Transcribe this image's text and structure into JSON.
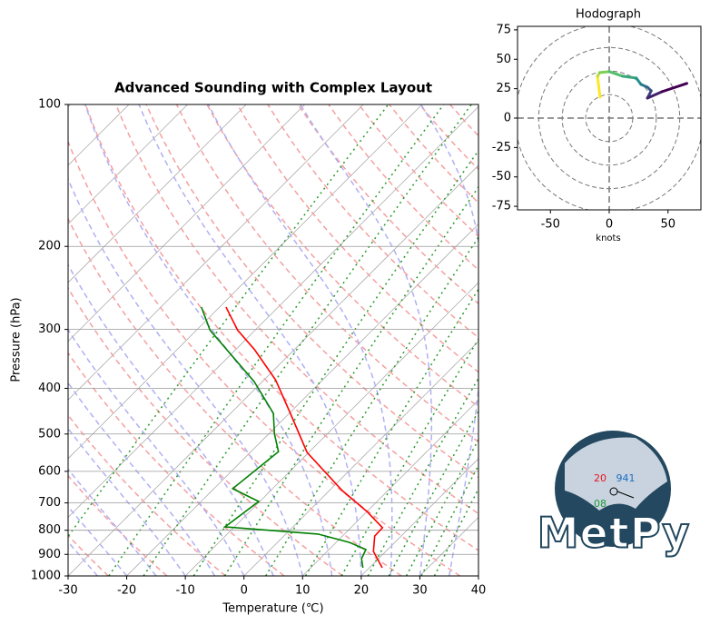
{
  "chart_data": [
    {
      "type": "skewt",
      "title": "Advanced Sounding with Complex Layout",
      "xlabel": "Temperature (℃)",
      "ylabel": "Pressure (hPa)",
      "xlim": [
        -30,
        40
      ],
      "xticks": [
        -30,
        -20,
        -10,
        0,
        10,
        20,
        30,
        40
      ],
      "ylim": [
        1000,
        100
      ],
      "yticks": [
        100,
        200,
        300,
        400,
        500,
        600,
        700,
        800,
        900,
        1000
      ],
      "ylog": true,
      "grid": true,
      "series": [
        {
          "color": "#ff0000",
          "pressure": [
            961,
            887,
            823,
            790,
            730,
            659,
            547,
            452,
            384,
            331,
            301,
            269
          ],
          "values": [
            22.2,
            17.9,
            15.5,
            15.4,
            10.0,
            2.2,
            -10.3,
            -19.8,
            -28.0,
            -36.8,
            -43.0,
            -48.9
          ]
        },
        {
          "color": "#008000",
          "pressure": [
            961,
            919,
            879,
            849,
            815,
            787,
            695,
            653,
            545,
            500,
            452,
            387,
            301,
            269
          ],
          "values": [
            18.9,
            17.1,
            16.3,
            12.3,
            5.5,
            -11.6,
            -10.2,
            -16.8,
            -15.3,
            -19.0,
            -22.7,
            -31.4,
            -47.7,
            -53.1
          ]
        }
      ]
    },
    {
      "type": "hodograph",
      "title": "Hodograph",
      "xlabel": "knots",
      "xlim": [
        -78,
        78
      ],
      "xticks": [
        -50,
        0,
        50
      ],
      "ylim": [
        -78,
        78
      ],
      "yticks": [
        -75,
        -50,
        -25,
        0,
        25,
        50,
        75
      ],
      "u": [
        -7.8,
        -10,
        -8,
        0,
        11.6,
        23,
        27,
        32.5,
        35.7,
        32.5,
        45,
        66
      ],
      "v": [
        17.8,
        35.6,
        38.7,
        39.5,
        35.6,
        34,
        28.7,
        26.3,
        23.2,
        17,
        22.5,
        29.5
      ],
      "colormap": [
        "#fde725",
        "#5ec962",
        "#21918c",
        "#3b528b",
        "#440154"
      ]
    }
  ],
  "logo": {
    "text": "MetPy",
    "temperature": "20",
    "pressure": "941",
    "dewpoint": "08"
  }
}
